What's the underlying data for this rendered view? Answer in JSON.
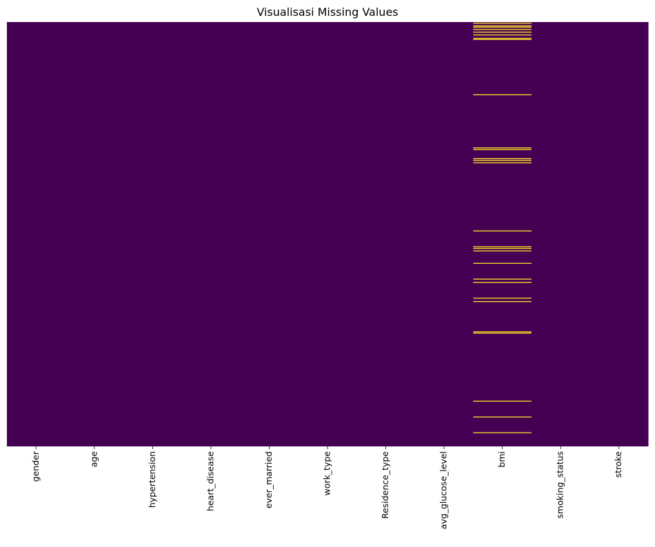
{
  "chart_data": {
    "type": "heatmap",
    "title": "Visualisasi Missing Values",
    "xlabel": "",
    "ylabel": "",
    "columns": [
      "gender",
      "age",
      "hypertension",
      "heart_disease",
      "ever_married",
      "work_type",
      "Residence_type",
      "avg_glucose_level",
      "bmi",
      "smoking_status",
      "stroke"
    ],
    "row_count": 5110,
    "yticks_shown": false,
    "colorbar_shown": false,
    "colormap": "viridis",
    "colors": {
      "present": "#440154",
      "missing": "#fde725"
    },
    "missing": {
      "bmi": [
        8,
        41,
        56,
        84,
        116,
        150,
        190,
        205,
        870,
        1510,
        1530,
        1640,
        1660,
        1690,
        2510,
        2700,
        2750,
        2720,
        2900,
        3090,
        3130,
        3320,
        3360,
        3725,
        3740,
        4560,
        4750,
        4940
      ]
    }
  }
}
